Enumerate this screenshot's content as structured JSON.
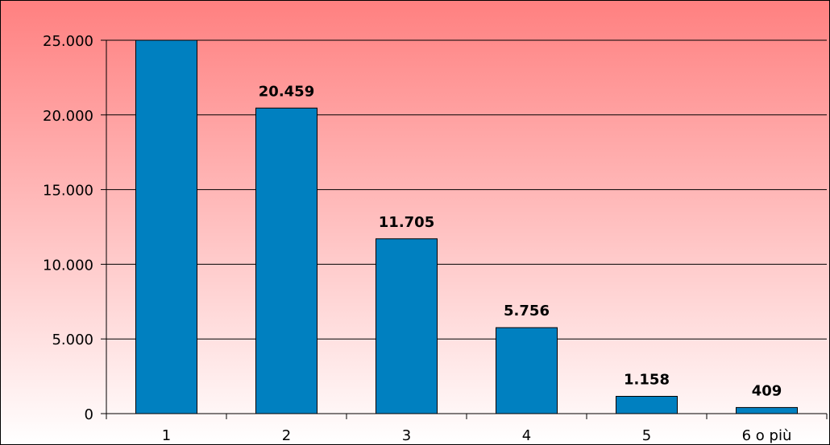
{
  "chart_data": {
    "type": "bar",
    "categories": [
      "1",
      "2",
      "3",
      "4",
      "5",
      "6 o più"
    ],
    "values": [
      25300,
      20459,
      11705,
      5756,
      1158,
      409
    ],
    "data_labels": [
      "",
      "20.459",
      "11.705",
      "5.756",
      "1.158",
      "409"
    ],
    "title": "",
    "xlabel": "",
    "ylabel": "",
    "ylim": [
      0,
      25000
    ],
    "yticks": [
      0,
      5000,
      10000,
      15000,
      20000,
      25000
    ],
    "ytick_labels": [
      "0",
      "5.000",
      "10.000",
      "15.000",
      "20.000",
      "25.000"
    ],
    "grid": true,
    "legend": "none",
    "bar_color": "#0080C0",
    "background_top_color": "#FF8080",
    "background_bottom_color": "#FFFFFF"
  }
}
